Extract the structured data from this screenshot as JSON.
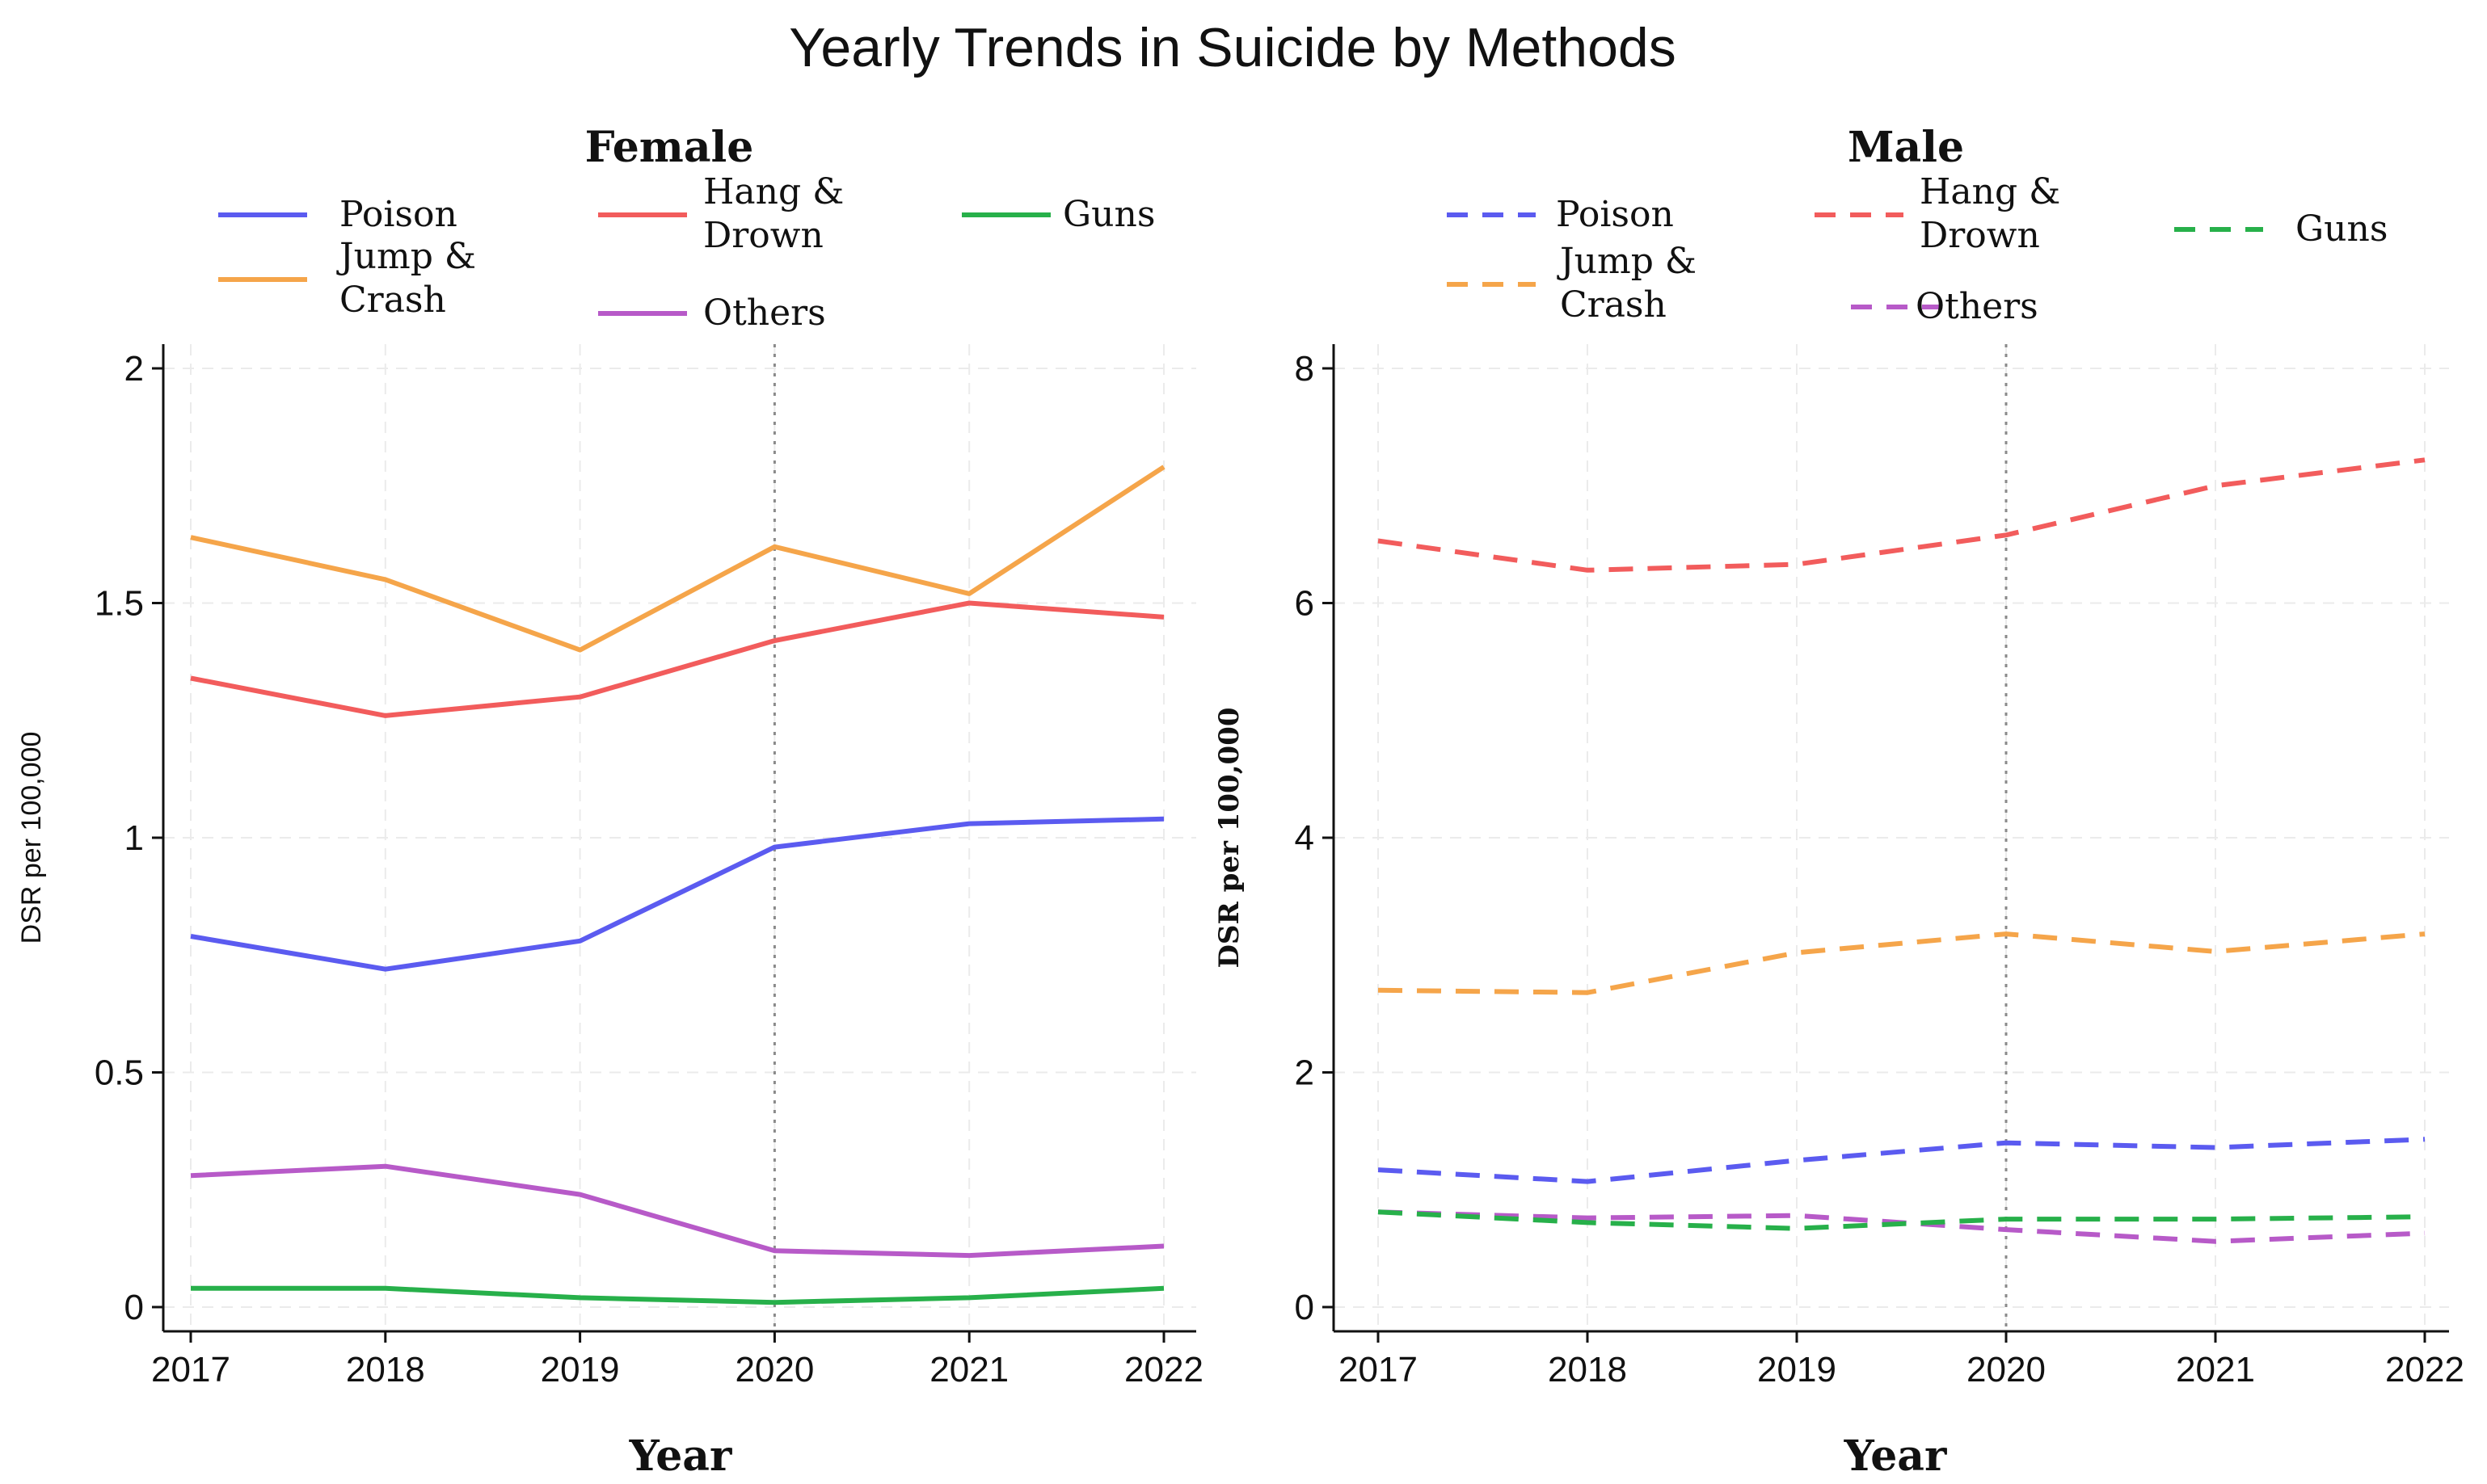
{
  "title": "Yearly Trends in Suicide by Methods",
  "colors": {
    "Poison": "#5b5bf0",
    "Jump & Crash": "#f5a54a",
    "Hang & Drown": "#f25c5c",
    "Others": "#b75ac8",
    "Guns": "#27b04a"
  },
  "chart_data": [
    {
      "type": "line",
      "title": "Female",
      "xlabel": "Year",
      "ylabel": "DSR per 100,000",
      "x": [
        2017,
        2018,
        2019,
        2020,
        2021,
        2022
      ],
      "xticks": [
        "2017",
        "2018",
        "2019",
        "2020",
        "2021",
        "2022"
      ],
      "ylim": [
        0,
        2
      ],
      "yticks": [
        "0",
        "0.5",
        "1",
        "1.5",
        "2"
      ],
      "ytick_values": [
        0,
        0.5,
        1,
        1.5,
        2
      ],
      "reference_line_x": 2020,
      "line_style": "solid",
      "legend": {
        "placement": "top",
        "items": [
          {
            "name": "Poison",
            "label": "Poison"
          },
          {
            "name": "Hang & Drown",
            "label_lines": [
              "Hang &",
              "Drown"
            ]
          },
          {
            "name": "Guns",
            "label": "Guns"
          },
          {
            "name": "Jump & Crash",
            "label_lines": [
              "Jump &",
              "Crash"
            ]
          },
          {
            "name": "Others",
            "label": "Others"
          }
        ]
      },
      "series": [
        {
          "name": "Poison",
          "values": [
            0.79,
            0.72,
            0.78,
            0.98,
            1.03,
            1.04
          ]
        },
        {
          "name": "Jump & Crash",
          "values": [
            1.64,
            1.55,
            1.4,
            1.62,
            1.52,
            1.79
          ]
        },
        {
          "name": "Hang & Drown",
          "values": [
            1.34,
            1.26,
            1.3,
            1.42,
            1.5,
            1.47
          ]
        },
        {
          "name": "Others",
          "values": [
            0.28,
            0.3,
            0.24,
            0.12,
            0.11,
            0.13
          ]
        },
        {
          "name": "Guns",
          "values": [
            0.04,
            0.04,
            0.02,
            0.01,
            0.02,
            0.04
          ]
        }
      ]
    },
    {
      "type": "line",
      "title": "Male",
      "xlabel": "Year",
      "ylabel": "DSR per 100,000",
      "x": [
        2017,
        2018,
        2019,
        2020,
        2021,
        2022
      ],
      "xticks": [
        "2017",
        "2018",
        "2019",
        "2020",
        "2021",
        "2022"
      ],
      "ylim": [
        0,
        8
      ],
      "yticks": [
        "0",
        "2",
        "4",
        "6",
        "8"
      ],
      "ytick_values": [
        0,
        2,
        4,
        6,
        8
      ],
      "reference_line_x": 2020,
      "line_style": "dashed",
      "legend": {
        "placement": "top",
        "items": [
          {
            "name": "Poison",
            "label": "Poison"
          },
          {
            "name": "Hang & Drown",
            "label_lines": [
              "Hang &",
              "Drown"
            ]
          },
          {
            "name": "Guns",
            "label": "Guns"
          },
          {
            "name": "Jump & Crash",
            "label_lines": [
              "Jump &",
              "Crash"
            ]
          },
          {
            "name": "Others",
            "label": "Others"
          }
        ]
      },
      "series": [
        {
          "name": "Poison",
          "values": [
            1.17,
            1.07,
            1.25,
            1.4,
            1.36,
            1.43
          ]
        },
        {
          "name": "Jump & Crash",
          "values": [
            2.7,
            2.68,
            3.02,
            3.18,
            3.03,
            3.18
          ]
        },
        {
          "name": "Hang & Drown",
          "values": [
            6.53,
            6.28,
            6.33,
            6.58,
            7.0,
            7.22
          ]
        },
        {
          "name": "Others",
          "values": [
            0.81,
            0.76,
            0.78,
            0.66,
            0.56,
            0.63
          ]
        },
        {
          "name": "Guns",
          "values": [
            0.81,
            0.72,
            0.67,
            0.75,
            0.75,
            0.77
          ]
        }
      ]
    }
  ]
}
